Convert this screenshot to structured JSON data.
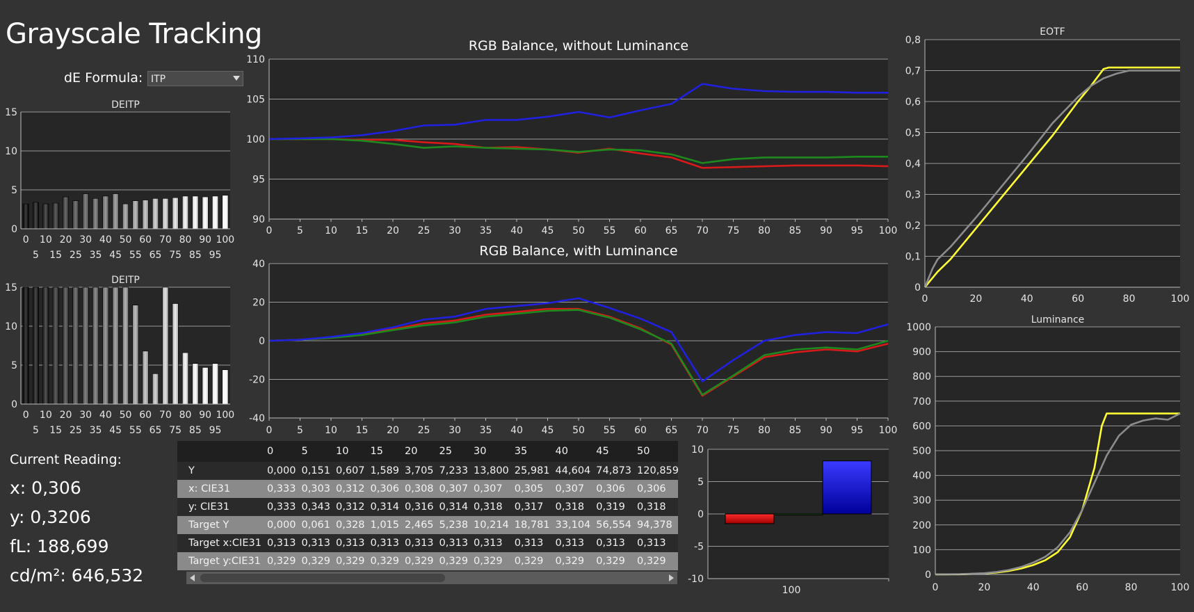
{
  "app": {
    "title": "Grayscale Tracking",
    "de_formula_label": "dE Formula:",
    "de_formula_value": "ITP"
  },
  "current_reading": {
    "heading": "Current Reading:",
    "x": "x: 0,306",
    "y": "y: 0,3206",
    "fl": "fL: 188,699",
    "cdm2": "cd/m²: 646,532"
  },
  "colors": {
    "red": "#d81a1a",
    "green": "#1d8a1d",
    "blue": "#2020e0",
    "yellow": "#ffff33",
    "gray_curve": "#8c8c8c",
    "plot_bg": "#262626",
    "grid": "#9a9a9a"
  },
  "chart_data": [
    {
      "id": "deitp_top",
      "type": "bar",
      "title": "DEITP",
      "ylim": [
        0,
        15
      ],
      "yticks": [
        "0",
        "5",
        "10",
        "15"
      ],
      "categories": [
        0,
        5,
        10,
        15,
        20,
        25,
        30,
        35,
        40,
        45,
        50,
        55,
        60,
        65,
        70,
        75,
        80,
        85,
        90,
        95,
        100
      ],
      "x_labels_row1": [
        "0",
        "10",
        "20",
        "30",
        "40",
        "50",
        "60",
        "70",
        "80",
        "90",
        "100"
      ],
      "x_labels_row2": [
        "5",
        "15",
        "25",
        "35",
        "45",
        "55",
        "65",
        "75",
        "85",
        "95"
      ],
      "values": [
        3.2,
        3.4,
        3.2,
        3.3,
        4.1,
        3.6,
        4.5,
        3.9,
        4.2,
        4.5,
        3.2,
        3.6,
        3.7,
        3.9,
        3.9,
        4.0,
        4.2,
        4.2,
        4.1,
        4.2,
        4.3
      ]
    },
    {
      "id": "deitp_bottom",
      "type": "bar",
      "title": "DEITP",
      "ylim": [
        0,
        15
      ],
      "yticks": [
        "0",
        "5",
        "10",
        "15"
      ],
      "categories": [
        0,
        5,
        10,
        15,
        20,
        25,
        30,
        35,
        40,
        45,
        50,
        55,
        60,
        65,
        70,
        75,
        80,
        85,
        90,
        95,
        100
      ],
      "x_labels_row1": [
        "0",
        "10",
        "20",
        "30",
        "40",
        "50",
        "60",
        "70",
        "80",
        "90",
        "100"
      ],
      "x_labels_row2": [
        "5",
        "15",
        "25",
        "35",
        "45",
        "55",
        "65",
        "75",
        "85",
        "95"
      ],
      "values": [
        15,
        15,
        15,
        15,
        15,
        15,
        15,
        15,
        15,
        15,
        15,
        12.7,
        6.8,
        3.9,
        15,
        12.9,
        6.6,
        5.2,
        4.7,
        5.2,
        4.4
      ]
    },
    {
      "id": "rgb_without",
      "type": "line",
      "title": "RGB Balance, without Luminance",
      "ylim": [
        90,
        110
      ],
      "yticks": [
        "90",
        "95",
        "100",
        "105",
        "110"
      ],
      "x": [
        0,
        5,
        10,
        15,
        20,
        25,
        30,
        35,
        40,
        45,
        50,
        55,
        60,
        65,
        70,
        75,
        80,
        85,
        90,
        95,
        100
      ],
      "x_labels": [
        "0",
        "5",
        "10",
        "15",
        "20",
        "25",
        "30",
        "35",
        "40",
        "45",
        "50",
        "55",
        "60",
        "65",
        "70",
        "75",
        "80",
        "85",
        "90",
        "95",
        "100"
      ],
      "series": [
        {
          "color": "red",
          "values": [
            100,
            100,
            100,
            99.9,
            99.9,
            99.6,
            99.4,
            98.9,
            99.0,
            98.7,
            98.3,
            98.8,
            98.2,
            97.7,
            96.4,
            96.5,
            96.6,
            96.7,
            96.7,
            96.7,
            96.6
          ]
        },
        {
          "color": "green",
          "values": [
            100,
            100,
            100,
            99.8,
            99.4,
            98.9,
            99.1,
            98.9,
            98.8,
            98.7,
            98.4,
            98.7,
            98.6,
            98.1,
            97.0,
            97.5,
            97.7,
            97.7,
            97.7,
            97.8,
            97.8
          ]
        },
        {
          "color": "blue",
          "values": [
            100,
            100.1,
            100.2,
            100.5,
            101.0,
            101.7,
            101.8,
            102.4,
            102.4,
            102.8,
            103.4,
            102.7,
            103.6,
            104.4,
            106.9,
            106.3,
            106.0,
            105.9,
            105.9,
            105.8,
            105.8
          ]
        }
      ]
    },
    {
      "id": "rgb_with",
      "type": "line",
      "title": "RGB Balance, with Luminance",
      "ylim": [
        -40,
        40
      ],
      "yticks": [
        "-40",
        "-20",
        "0",
        "20",
        "40"
      ],
      "x": [
        0,
        5,
        10,
        15,
        20,
        25,
        30,
        35,
        40,
        45,
        50,
        55,
        60,
        65,
        70,
        75,
        80,
        85,
        90,
        95,
        100
      ],
      "x_labels": [
        "0",
        "5",
        "10",
        "15",
        "20",
        "25",
        "30",
        "35",
        "40",
        "45",
        "50",
        "55",
        "60",
        "65",
        "70",
        "75",
        "80",
        "85",
        "90",
        "95",
        "100"
      ],
      "series": [
        {
          "color": "red",
          "values": [
            0,
            0.5,
            1.5,
            3.5,
            6,
            9,
            10.5,
            13.5,
            15,
            16.5,
            16.5,
            12.5,
            6.5,
            -2,
            -28.5,
            -18.5,
            -8.5,
            -6,
            -4.5,
            -5.5,
            -1.5
          ]
        },
        {
          "color": "green",
          "values": [
            0,
            0.5,
            1.5,
            3,
            5.5,
            8,
            9.5,
            12.5,
            14,
            15.5,
            16,
            12,
            6,
            -1.5,
            -28,
            -18,
            -7.5,
            -4.5,
            -3.5,
            -4.5,
            0
          ]
        },
        {
          "color": "blue",
          "values": [
            0,
            0.5,
            2,
            4,
            7,
            11,
            12.5,
            16.5,
            18,
            19.5,
            22,
            17,
            11.5,
            4.5,
            -21,
            -10,
            0,
            3,
            4.5,
            4,
            8.5
          ]
        }
      ]
    },
    {
      "id": "eotf",
      "type": "line",
      "title": "EOTF",
      "ylim": [
        0,
        0.8
      ],
      "xlim": [
        0,
        100
      ],
      "yticks": [
        "0",
        "0,1",
        "0,2",
        "0,3",
        "0,4",
        "0,5",
        "0,6",
        "0,7",
        "0,8"
      ],
      "x_labels": [
        "0",
        "20",
        "40",
        "60",
        "80",
        "100"
      ],
      "series": [
        {
          "color": "yellow",
          "x": [
            0,
            2,
            5,
            10,
            20,
            30,
            40,
            50,
            60,
            65,
            70,
            72,
            80,
            90,
            100
          ],
          "values": [
            0,
            0.02,
            0.05,
            0.09,
            0.19,
            0.29,
            0.39,
            0.49,
            0.6,
            0.65,
            0.705,
            0.71,
            0.71,
            0.71,
            0.71
          ]
        },
        {
          "color": "gray",
          "x": [
            0,
            3,
            5,
            10,
            20,
            30,
            40,
            50,
            60,
            65,
            70,
            75,
            80,
            90,
            100
          ],
          "values": [
            0,
            0.06,
            0.09,
            0.13,
            0.225,
            0.325,
            0.425,
            0.53,
            0.615,
            0.65,
            0.675,
            0.69,
            0.7,
            0.7,
            0.7
          ]
        }
      ]
    },
    {
      "id": "luminance",
      "type": "line",
      "title": "Luminance",
      "ylim": [
        0,
        1000
      ],
      "xlim": [
        0,
        100
      ],
      "yticks": [
        "0",
        "100",
        "200",
        "300",
        "400",
        "500",
        "600",
        "700",
        "800",
        "900",
        "1000"
      ],
      "x_labels": [
        "0",
        "20",
        "40",
        "60",
        "80",
        "100"
      ],
      "series": [
        {
          "color": "yellow",
          "x": [
            0,
            10,
            20,
            25,
            30,
            35,
            40,
            45,
            50,
            55,
            60,
            65,
            68,
            70,
            75,
            80,
            90,
            100
          ],
          "values": [
            0,
            0.5,
            4,
            8,
            14,
            24,
            38,
            58,
            90,
            150,
            260,
            430,
            600,
            650,
            650,
            650,
            650,
            650
          ]
        },
        {
          "color": "gray",
          "x": [
            0,
            10,
            20,
            25,
            30,
            35,
            40,
            45,
            50,
            55,
            60,
            65,
            70,
            75,
            80,
            85,
            90,
            95,
            100
          ],
          "values": [
            0,
            1,
            5,
            10,
            18,
            30,
            48,
            72,
            110,
            170,
            260,
            370,
            480,
            560,
            605,
            622,
            630,
            625,
            650
          ]
        }
      ]
    },
    {
      "id": "rgb_bar",
      "type": "bar",
      "ylim": [
        -10,
        10
      ],
      "yticks": [
        "-10",
        "-5",
        "0",
        "5",
        "10"
      ],
      "categories": [
        "100"
      ],
      "series": [
        {
          "color": "red",
          "value": -1.5
        },
        {
          "color": "green",
          "value": -0.1
        },
        {
          "color": "blue",
          "value": 8.2
        }
      ]
    }
  ],
  "table": {
    "columns": [
      "0",
      "5",
      "10",
      "15",
      "20",
      "25",
      "30",
      "35",
      "40",
      "45",
      "50"
    ],
    "rows": [
      {
        "label": "Y",
        "cells": [
          "0,000",
          "0,151",
          "0,607",
          "1,589",
          "3,705",
          "7,233",
          "13,800",
          "25,981",
          "44,604",
          "74,873",
          "120,859"
        ]
      },
      {
        "label": "x: CIE31",
        "cells": [
          "0,333",
          "0,303",
          "0,312",
          "0,306",
          "0,308",
          "0,307",
          "0,307",
          "0,305",
          "0,307",
          "0,306",
          "0,306"
        ]
      },
      {
        "label": "y: CIE31",
        "cells": [
          "0,333",
          "0,343",
          "0,312",
          "0,314",
          "0,316",
          "0,314",
          "0,318",
          "0,317",
          "0,318",
          "0,319",
          "0,318"
        ]
      },
      {
        "label": "Target Y",
        "cells": [
          "0,000",
          "0,061",
          "0,328",
          "1,015",
          "2,465",
          "5,238",
          "10,214",
          "18,781",
          "33,104",
          "56,554",
          "94,378"
        ]
      },
      {
        "label": "Target x:CIE31",
        "cells": [
          "0,313",
          "0,313",
          "0,313",
          "0,313",
          "0,313",
          "0,313",
          "0,313",
          "0,313",
          "0,313",
          "0,313",
          "0,313"
        ]
      },
      {
        "label": "Target y:CIE31",
        "cells": [
          "0,329",
          "0,329",
          "0,329",
          "0,329",
          "0,329",
          "0,329",
          "0,329",
          "0,329",
          "0,329",
          "0,329",
          "0,329"
        ]
      }
    ]
  }
}
